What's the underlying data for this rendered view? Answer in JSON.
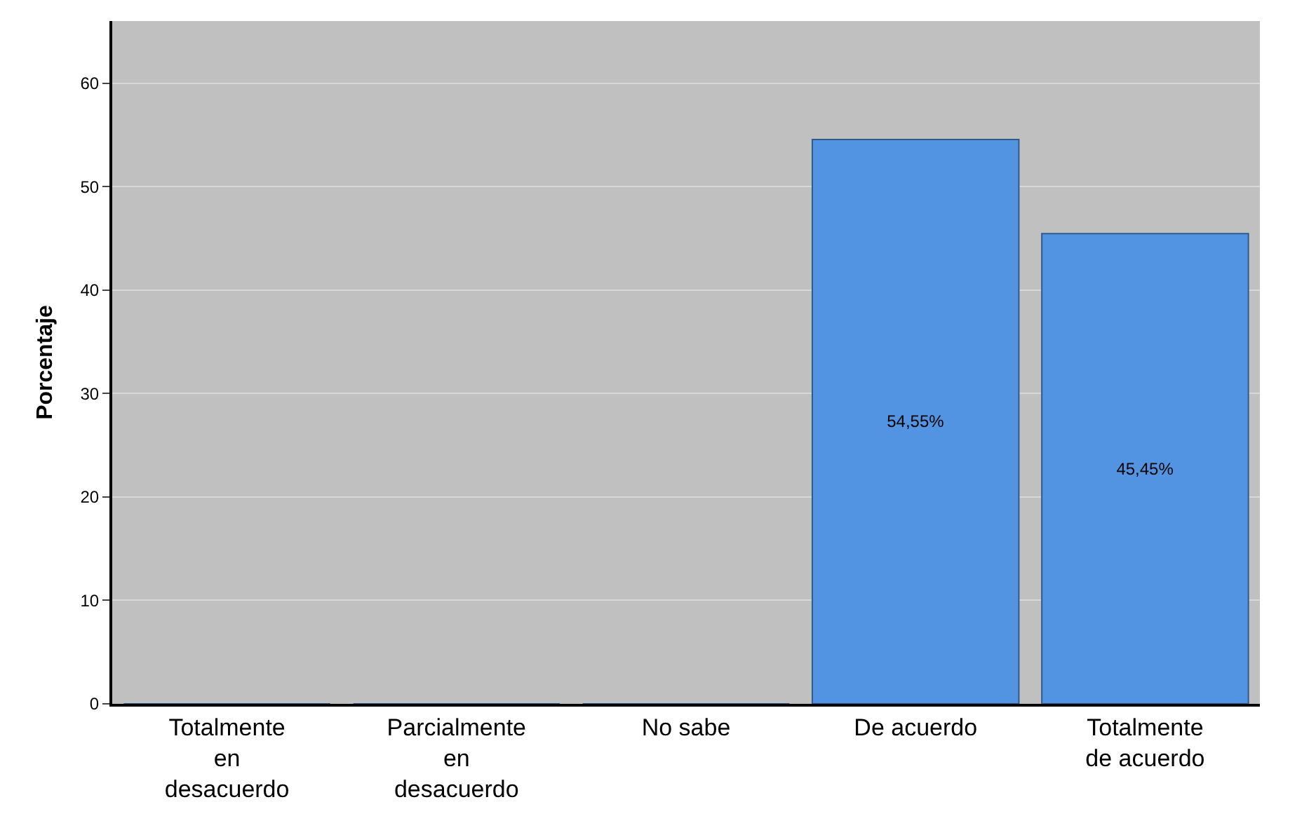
{
  "chart_data": {
    "type": "bar",
    "categories": [
      "Totalmente en desacuerdo",
      "Parcialmente en desacuerdo",
      "No sabe",
      "De acuerdo",
      "Totalmente de acuerdo"
    ],
    "values": [
      0,
      0,
      0,
      54.55,
      45.45
    ],
    "value_labels": [
      null,
      null,
      null,
      "54,55%",
      "45,45%"
    ],
    "color": "#5394e2",
    "ylabel": "Porcentaje",
    "ylim": [
      0,
      66
    ],
    "yticks": [
      0,
      10,
      20,
      30,
      40,
      50,
      60
    ],
    "grid": "y"
  }
}
